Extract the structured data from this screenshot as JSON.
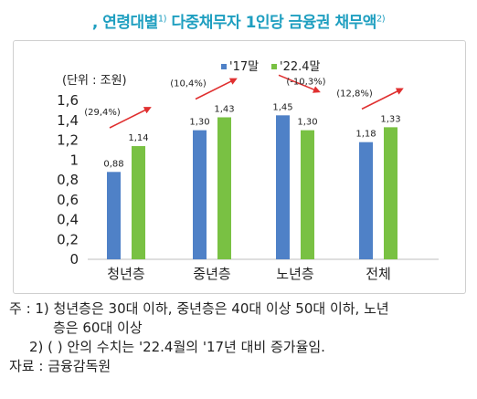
{
  "title": {
    "prefix": ", ",
    "text1": "연령대별",
    "sup1": "1)",
    "text2": " 다중채무자 1인당 금융권 채무액",
    "sup2": "2)"
  },
  "chart_data": {
    "type": "bar",
    "unit_label": "(단위 : 조원)",
    "categories": [
      "청년층",
      "중년층",
      "노년층",
      "전체"
    ],
    "series": [
      {
        "name": "'17말",
        "values": [
          0.88,
          1.3,
          1.45,
          1.18
        ],
        "labels": [
          "0,88",
          "1,30",
          "1,45",
          "1,18"
        ],
        "color": "#4f81c7"
      },
      {
        "name": "'22.4말",
        "values": [
          1.14,
          1.43,
          1.3,
          1.33
        ],
        "labels": [
          "1,14",
          "1,43",
          "1,30",
          "1,33"
        ],
        "color": "#79c143"
      }
    ],
    "ylim": [
      0,
      1.6
    ],
    "yticks": [
      0,
      0.2,
      0.4,
      0.6,
      0.8,
      1,
      1.2,
      1.4,
      1.6
    ],
    "ytick_labels": [
      "0",
      "0,2",
      "0,4",
      "0,6",
      "0,8",
      "1",
      "1,2",
      "1,4",
      "1,6"
    ],
    "annotations": [
      "(29,4%)",
      "(10,4%)",
      "(-10,3%)",
      "(12,8%)"
    ],
    "arrow_directions": [
      "up",
      "up",
      "down",
      "up"
    ],
    "legend_position": "top",
    "arrow_color": "#e03030"
  },
  "notes": {
    "line1": "주 : 1) 청년층은 30대 이하, 중년층은 40대 이상 50대 이하, 노년",
    "line2": "층은 60대 이상",
    "line3": "2) (  ) 안의 수치는 '22.4월의 '17년 대비  증가율임.",
    "line4": "자료 : 금융감독원"
  }
}
